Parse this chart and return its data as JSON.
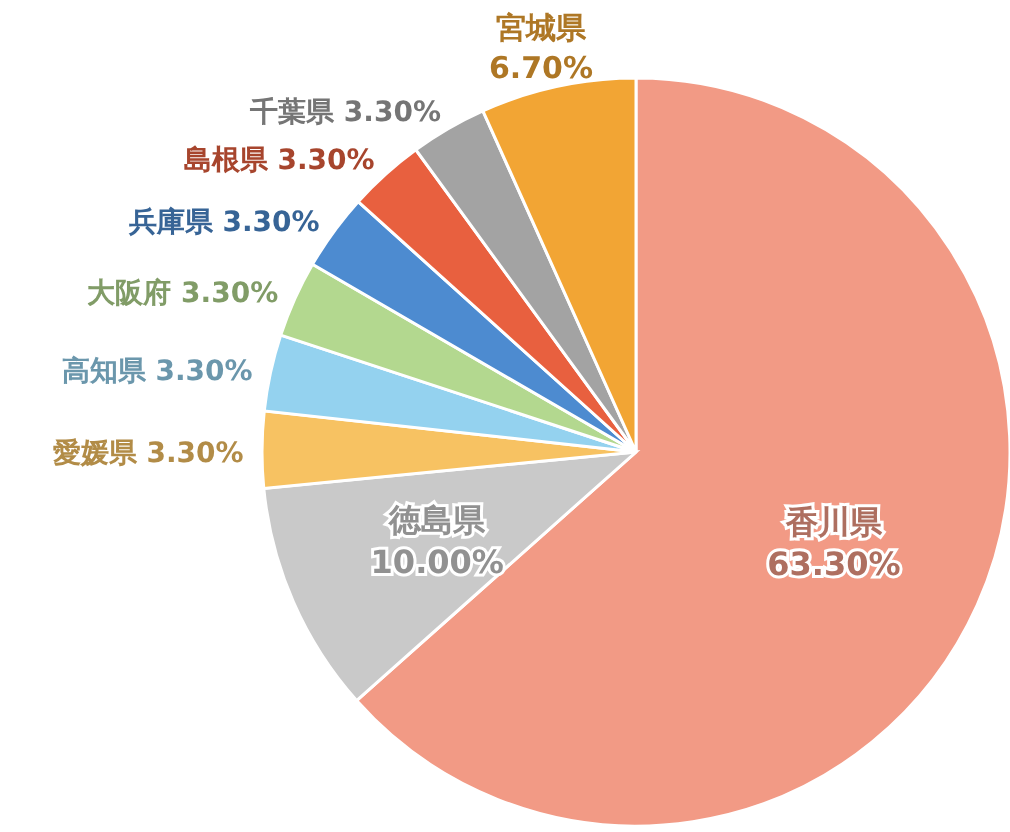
{
  "chart_data": {
    "type": "pie",
    "categories": [
      "香川県",
      "徳島県",
      "愛媛県",
      "高知県",
      "大阪府",
      "兵庫県",
      "島根県",
      "千葉県",
      "宮城県"
    ],
    "values": [
      63.3,
      10.0,
      3.3,
      3.3,
      3.3,
      3.3,
      3.3,
      3.3,
      6.7
    ],
    "value_labels": [
      "63.30%",
      "10.00%",
      "3.30%",
      "3.30%",
      "3.30%",
      "3.30%",
      "3.30%",
      "3.30%",
      "6.70%"
    ],
    "colors": [
      "#f29a85",
      "#c9c9c9",
      "#f7c262",
      "#94d2ef",
      "#b3d88f",
      "#4d8bd0",
      "#e8603f",
      "#a3a3a3",
      "#f2a534"
    ],
    "legend": false
  }
}
